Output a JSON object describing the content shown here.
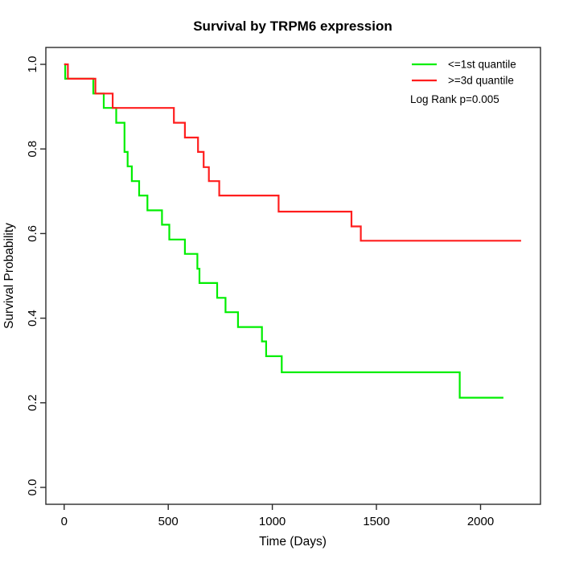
{
  "chart_data": {
    "type": "line",
    "variant": "kaplan-meier-step",
    "title": "Survival by TRPM6 expression",
    "xlabel": "Time (Days)",
    "ylabel": "Survival Probability",
    "xlim": [
      0,
      2200
    ],
    "ylim": [
      0,
      1
    ],
    "x_ticks": [
      0,
      500,
      1000,
      1500,
      2000
    ],
    "y_tick_labels": [
      "0.0",
      "0.2",
      "0.4",
      "0.6",
      "0.8",
      "1.0"
    ],
    "grid": false,
    "legend_position": "top-right",
    "annotation": "Log Rank p=0.005",
    "series": [
      {
        "id": "low-expression",
        "name": "<=1st quantile",
        "color": "#00EE00",
        "end_time": 2110,
        "steps": [
          [
            0,
            1.0
          ],
          [
            5,
            0.966
          ],
          [
            140,
            0.931
          ],
          [
            190,
            0.897
          ],
          [
            250,
            0.862
          ],
          [
            290,
            0.793
          ],
          [
            305,
            0.759
          ],
          [
            325,
            0.724
          ],
          [
            360,
            0.69
          ],
          [
            400,
            0.655
          ],
          [
            470,
            0.621
          ],
          [
            505,
            0.586
          ],
          [
            580,
            0.552
          ],
          [
            640,
            0.517
          ],
          [
            650,
            0.483
          ],
          [
            735,
            0.448
          ],
          [
            775,
            0.414
          ],
          [
            835,
            0.379
          ],
          [
            950,
            0.345
          ],
          [
            970,
            0.31
          ],
          [
            1045,
            0.272
          ],
          [
            1900,
            0.212
          ]
        ]
      },
      {
        "id": "high-expression",
        "name": ">=3d quantile",
        "color": "#FF1E1E",
        "end_time": 2195,
        "steps": [
          [
            0,
            1.0
          ],
          [
            18,
            0.966
          ],
          [
            150,
            0.931
          ],
          [
            233,
            0.897
          ],
          [
            527,
            0.862
          ],
          [
            580,
            0.827
          ],
          [
            643,
            0.793
          ],
          [
            670,
            0.757
          ],
          [
            695,
            0.724
          ],
          [
            745,
            0.69
          ],
          [
            1030,
            0.652
          ],
          [
            1380,
            0.617
          ],
          [
            1425,
            0.583
          ]
        ]
      }
    ]
  }
}
